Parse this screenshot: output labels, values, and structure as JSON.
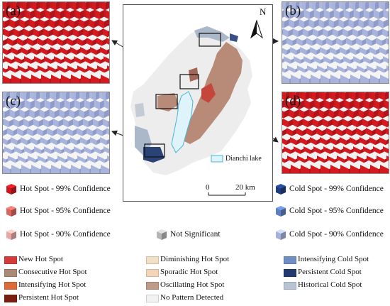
{
  "insets": [
    {
      "label": "(a)",
      "tone": "red"
    },
    {
      "label": "(b)",
      "tone": "blue"
    },
    {
      "label": "(c)",
      "tone": "blue"
    },
    {
      "label": "(d)",
      "tone": "red"
    }
  ],
  "map": {
    "north_label": "N",
    "lake_label": "Dianchi lake",
    "scale_zero": "0",
    "scale_end": "20 km"
  },
  "legend_3d": [
    {
      "label": "Hot Spot - 99% Confidence",
      "color": "#c8191e"
    },
    {
      "label": "Cold Spot - 99% Confidence",
      "color": "#1f3d85"
    },
    {
      "label": "Hot Spot - 95% Confidence",
      "color": "#d9655e"
    },
    {
      "label": "Cold Spot - 95% Confidence",
      "color": "#5d7ec0"
    },
    {
      "label": "Hot Spot - 90% Confidence",
      "color": "#e3a8a6"
    },
    {
      "label": "Not Significant",
      "color": "#b5b5b5"
    },
    {
      "label": "Cold Spot - 90% Confidence",
      "color": "#a7b2d8"
    }
  ],
  "legend_patterns": [
    {
      "label": "New Hot Spot",
      "color": "#d43b3b"
    },
    {
      "label": "Diminishing Hot Spot",
      "color": "#f1dfc6"
    },
    {
      "label": "Intensifying Cold Spot",
      "color": "#6f8ec4"
    },
    {
      "label": "Consecutive Hot Spot",
      "color": "#a98a74"
    },
    {
      "label": "Sporadic Hot Spot",
      "color": "#f3d6b7"
    },
    {
      "label": "Persistent Cold Spot",
      "color": "#233a70"
    },
    {
      "label": "Intensifying Hot Spot",
      "color": "#dc6b3b"
    },
    {
      "label": "Oscillating Hot Spot",
      "color": "#c09a88"
    },
    {
      "label": "Historical Cold Spot",
      "color": "#b7c4d3"
    },
    {
      "label": "Persistent Hot Spot",
      "color": "#7a1f10"
    },
    {
      "label": "No Pattern Detected",
      "color": "#f2f2f2"
    }
  ]
}
